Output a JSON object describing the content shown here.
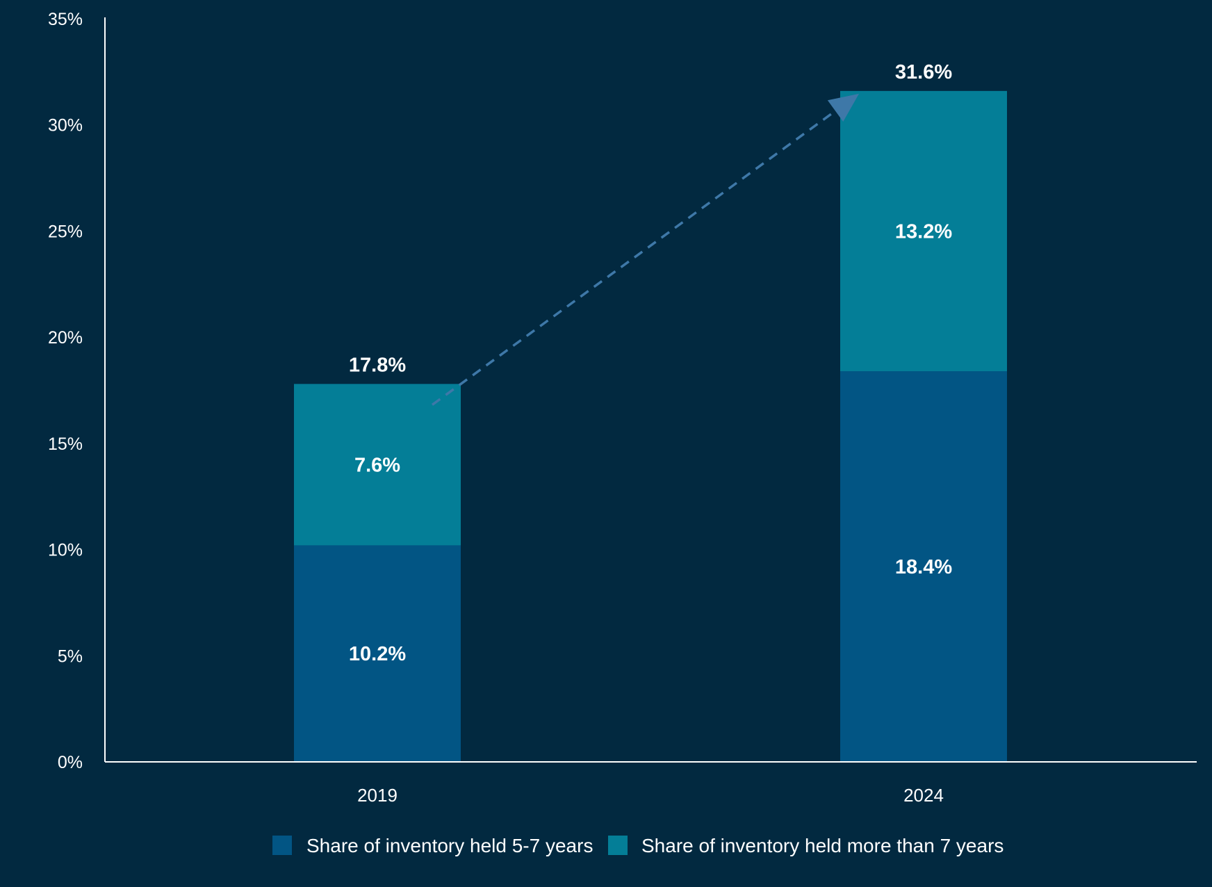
{
  "chart_data": {
    "type": "bar",
    "stacked": true,
    "categories": [
      "2019",
      "2024"
    ],
    "series": [
      {
        "name": "Share of inventory held 5-7 years",
        "values": [
          10.2,
          18.4
        ],
        "labels": [
          "10.2%",
          "18.4%"
        ],
        "color": "#025584"
      },
      {
        "name": "Share of inventory held more than 7 years",
        "values": [
          7.6,
          13.2
        ],
        "labels": [
          "7.6%",
          "13.2%"
        ],
        "color": "#047E97"
      }
    ],
    "totals": [
      17.8,
      31.6
    ],
    "total_labels": [
      "17.8%",
      "31.6%"
    ],
    "ylim": [
      0,
      35
    ],
    "yticks": [
      0,
      5,
      10,
      15,
      20,
      25,
      30,
      35
    ],
    "ytick_labels": [
      "0%",
      "5%",
      "10%",
      "15%",
      "20%",
      "25%",
      "30%",
      "35%"
    ],
    "title": "",
    "xlabel": "",
    "ylabel": "",
    "grid": false,
    "legend_position": "bottom-center",
    "annotation": {
      "type": "dashed-arrow",
      "from_category": "2019",
      "to_category": "2024",
      "color": "#3E78A8"
    },
    "background_color": "#022940",
    "axis_color": "#ffffff",
    "text_color": "#ffffff"
  }
}
